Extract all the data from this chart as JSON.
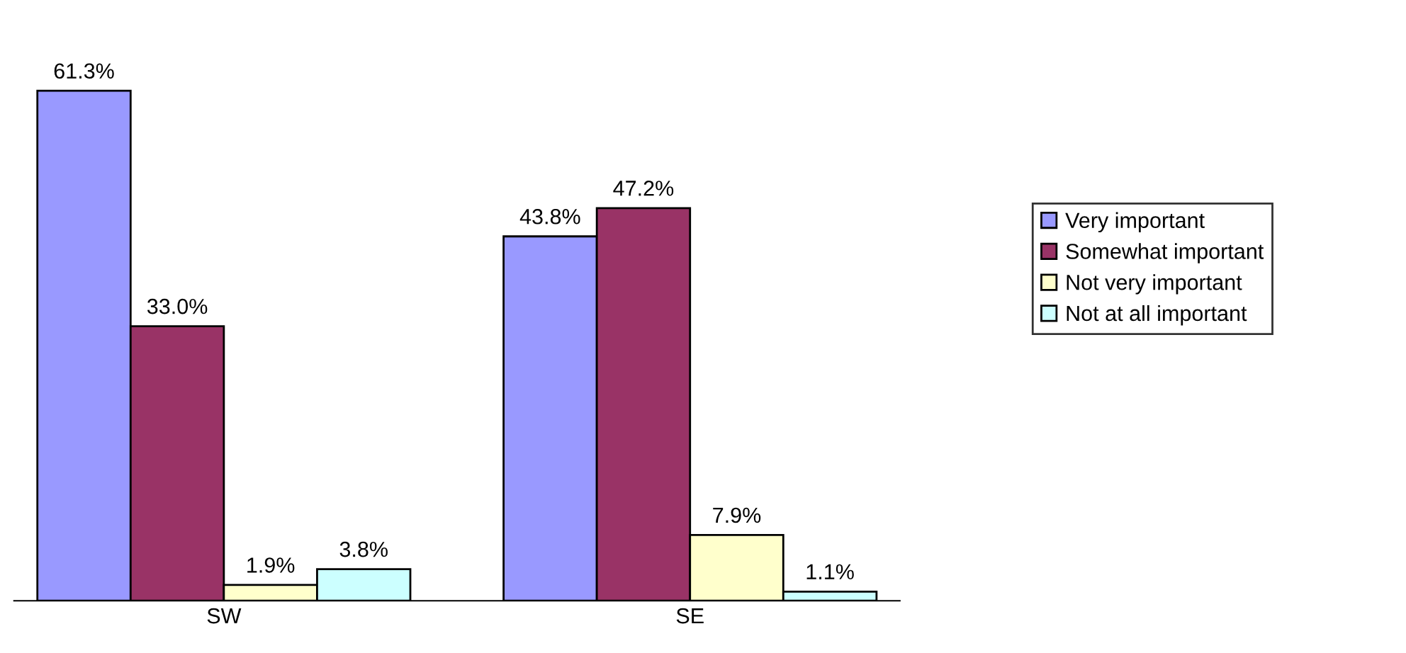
{
  "chart_data": {
    "type": "bar",
    "categories": [
      "SW",
      "SE"
    ],
    "series": [
      {
        "name": "Very important",
        "color": "#9999ff",
        "values": [
          61.3,
          43.8
        ],
        "value_labels": [
          "61.3%",
          "43.8%"
        ]
      },
      {
        "name": "Somewhat important",
        "color": "#993366",
        "values": [
          33.0,
          47.2
        ],
        "value_labels": [
          "33.0%",
          "47.2%"
        ]
      },
      {
        "name": "Not very important",
        "color": "#ffffcc",
        "values": [
          1.9,
          7.9
        ],
        "value_labels": [
          "1.9%",
          "7.9%"
        ]
      },
      {
        "name": "Not at all important",
        "color": "#ccffff",
        "values": [
          3.8,
          1.1
        ],
        "value_labels": [
          "3.8%",
          "1.1%"
        ]
      }
    ],
    "legend": "right",
    "grid": false
  }
}
